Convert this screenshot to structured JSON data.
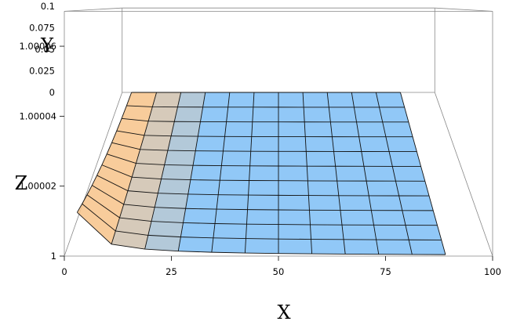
{
  "chart_data": {
    "type": "surface3d",
    "xlabel": "X",
    "ylabel": "Y",
    "zlabel": "Z",
    "x_ticks": [
      "0",
      "25",
      "50",
      "75",
      "100"
    ],
    "y_ticks": [
      "0",
      "0.025",
      "0.05",
      "0.075",
      "0.1"
    ],
    "z_ticks": [
      "1",
      "1.00002",
      "1.00004",
      "1.00006"
    ],
    "xlim": [
      0,
      100
    ],
    "ylim": [
      0,
      0.1
    ],
    "zlim": [
      1,
      1.00007
    ],
    "grid": false,
    "box": true,
    "mesh": {
      "x": [
        3,
        11,
        18.8,
        26.6,
        34.4,
        42.2,
        50,
        57.8,
        65.6,
        73.4,
        81.2,
        89
      ],
      "y": [
        0,
        0.00909,
        0.01818,
        0.02727,
        0.03636,
        0.04545,
        0.05455,
        0.06364,
        0.07273,
        0.08182,
        0.09091,
        0.1
      ],
      "z_model": "z = 1 + 0.000375 * y / x"
    },
    "colors": {
      "surface_low": "#7ebef6",
      "surface_high": "#f7c38a",
      "mesh_lines": "#111111",
      "box_lines": "#888888"
    }
  }
}
